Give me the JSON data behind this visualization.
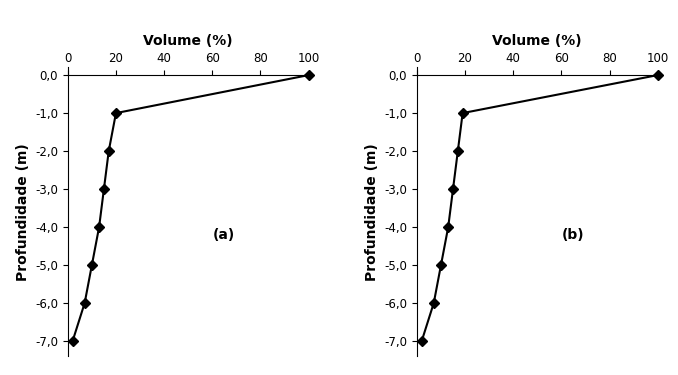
{
  "chart_a": {
    "label": "(a)",
    "volume": [
      100,
      20,
      17,
      15,
      13,
      10,
      7,
      2
    ],
    "depth": [
      0.0,
      -1.0,
      -2.0,
      -3.0,
      -4.0,
      -5.0,
      -6.0,
      -7.0
    ]
  },
  "chart_b": {
    "label": "(b)",
    "volume": [
      100,
      19,
      17,
      15,
      13,
      10,
      7,
      2
    ],
    "depth": [
      0.0,
      -1.0,
      -2.0,
      -3.0,
      -4.0,
      -5.0,
      -6.0,
      -7.0
    ]
  },
  "xlabel": "Volume (%)",
  "ylabel": "Profundidade (m)",
  "xlim": [
    0,
    100
  ],
  "ylim": [
    -7.4,
    0.2
  ],
  "xticks": [
    0,
    20,
    40,
    60,
    80,
    100
  ],
  "yticks": [
    0.0,
    -1.0,
    -2.0,
    -3.0,
    -4.0,
    -5.0,
    -6.0,
    -7.0
  ],
  "ytick_labels": [
    "0,0",
    "-1,0",
    "-2,0",
    "-3,0",
    "-4,0",
    "-5,0",
    "-6,0",
    "-7,0"
  ],
  "line_color": "#000000",
  "marker": "D",
  "markersize": 5,
  "linewidth": 1.5,
  "background_color": "#ffffff",
  "label_fontsize": 10,
  "tick_fontsize": 8.5,
  "annotation_fontsize": 10
}
